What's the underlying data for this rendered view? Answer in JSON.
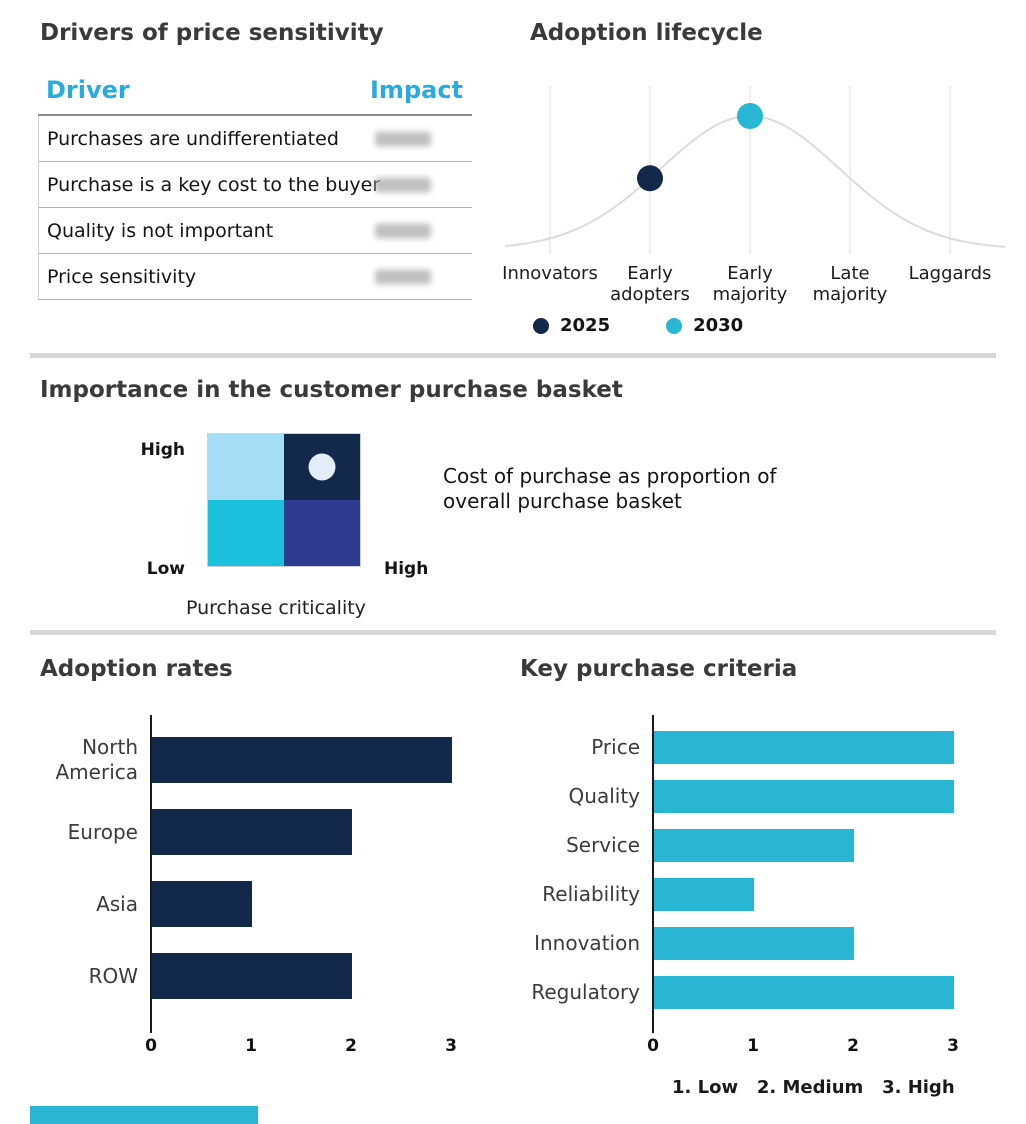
{
  "colors": {
    "navy": "#12294B",
    "cyan": "#29B6D4",
    "header_cyan": "#29ABE2",
    "quad_top_left": "#A5DCF6",
    "quad_top_right": "#12294B",
    "quad_bottom_left": "#1BC0DC",
    "quad_bottom_right": "#2F3B90",
    "bubble": "#E3EDF8",
    "curve": "#DCDCDC",
    "gridline": "#E6E6E6",
    "divider": "#D8D8D8"
  },
  "drivers": {
    "title": "Drivers of price sensitivity",
    "col_driver": "Driver",
    "col_impact": "Impact",
    "rows": [
      {
        "driver": "Purchases are undifferentiated",
        "impact": "",
        "impact_blurred": true
      },
      {
        "driver": "Purchase is a key cost to the buyer",
        "impact": "",
        "impact_blurred": true
      },
      {
        "driver": "Quality is not important",
        "impact": "",
        "impact_blurred": true
      },
      {
        "driver": "Price sensitivity",
        "impact": "",
        "impact_blurred": true
      }
    ]
  },
  "lifecycle": {
    "title": "Adoption lifecycle",
    "legend": [
      {
        "label": "2025",
        "color": "#12294B"
      },
      {
        "label": "2030",
        "color": "#29B6D4"
      }
    ]
  },
  "basket": {
    "title": "Importance in the customer purchase basket",
    "y_high": "High",
    "y_low": "Low",
    "x_high": "High",
    "x_label": "Purchase criticality",
    "description": "Cost of purchase as proportion of overall purchase basket"
  },
  "adoption_rates": {
    "title": "Adoption rates"
  },
  "purchase_criteria": {
    "title": "Key purchase criteria",
    "note": "1. Low   2. Medium   3. High"
  },
  "chart_data": [
    {
      "id": "lifecycle",
      "type": "line",
      "title": "Adoption lifecycle",
      "categories": [
        "Innovators",
        "Early adopters",
        "Early majority",
        "Late majority",
        "Laggards"
      ],
      "curve_shape": "bell",
      "legend_position": "bottom",
      "markers": [
        {
          "series": "2025",
          "category": "Early adopters",
          "color": "#12294B"
        },
        {
          "series": "2030",
          "category": "Early majority",
          "color": "#29B6D4"
        }
      ]
    },
    {
      "id": "adoption-rates",
      "type": "bar",
      "orientation": "horizontal",
      "title": "Adoption rates",
      "categories": [
        "North America",
        "Europe",
        "Asia",
        "ROW"
      ],
      "values": [
        3,
        2,
        1,
        2
      ],
      "xlim": [
        0,
        3
      ],
      "x_ticks": [
        0,
        1,
        2,
        3
      ],
      "bar_color": "#12294B"
    },
    {
      "id": "key-purchase-criteria",
      "type": "bar",
      "orientation": "horizontal",
      "title": "Key purchase criteria",
      "categories": [
        "Price",
        "Quality",
        "Service",
        "Reliability",
        "Innovation",
        "Regulatory"
      ],
      "values": [
        3,
        3,
        2,
        1,
        2,
        3
      ],
      "xlim": [
        0,
        3
      ],
      "x_ticks": [
        0,
        1,
        2,
        3
      ],
      "bar_color": "#29B6D4",
      "scale_note": "1. Low  2. Medium  3. High"
    },
    {
      "id": "purchase-basket-matrix",
      "type": "heatmap",
      "title": "Importance in the customer purchase basket",
      "x_axis_label": "Purchase criticality",
      "x_scale": [
        "Low",
        "High"
      ],
      "y_scale": [
        "Low",
        "High"
      ],
      "quadrant_colors": [
        [
          "#A5DCF6",
          "#12294B"
        ],
        [
          "#1BC0DC",
          "#2F3B90"
        ]
      ],
      "bubble": {
        "quadrant": "top-right",
        "note": "Cost of purchase as proportion of overall purchase basket"
      }
    }
  ]
}
